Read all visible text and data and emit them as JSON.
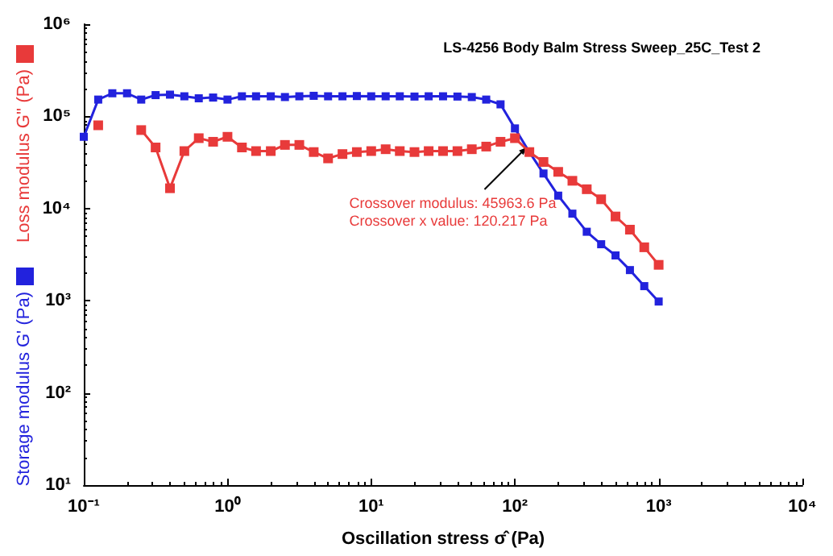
{
  "chart_data": {
    "type": "line",
    "title": "LS-4256 Body Balm Stress Sweep_25C_Test 2",
    "xlabel": "Oscillation stress σ̂ (Pa)",
    "log": "xy",
    "legend": "left",
    "grid": false,
    "xlim": [
      0.1,
      10000
    ],
    "xticks": [
      {
        "value": 0.1,
        "label": "10⁻¹"
      },
      {
        "value": 1,
        "label": "10⁰"
      },
      {
        "value": 10,
        "label": "10¹"
      },
      {
        "value": 100,
        "label": "10²"
      },
      {
        "value": 1000,
        "label": "10³"
      },
      {
        "value": 10000,
        "label": "10⁴"
      }
    ],
    "ylim": [
      10,
      1000000
    ],
    "yticks": [
      {
        "value": 10,
        "label": "10¹"
      },
      {
        "value": 100,
        "label": "10²"
      },
      {
        "value": 1000,
        "label": "10³"
      },
      {
        "value": 10000,
        "label": "10⁴"
      },
      {
        "value": 100000,
        "label": "10⁵"
      },
      {
        "value": 1000000,
        "label": "10⁶"
      }
    ],
    "annotations": [
      {
        "text": "Crossover modulus: 45963.6 Pa\nCrossover x value: 120.217 Pa",
        "x": 120.217,
        "y": 45963.6
      }
    ],
    "series": [
      {
        "name": "Loss modulus G'' (Pa)",
        "color": "#e83a3a",
        "marker": "square",
        "x": [
          0.126,
          0.2,
          0.251,
          0.316,
          0.398,
          0.501,
          0.631,
          0.794,
          1,
          1.26,
          1.58,
          2,
          2.51,
          3.16,
          3.98,
          5.01,
          6.31,
          7.94,
          10,
          12.6,
          15.8,
          20,
          25.1,
          31.6,
          39.8,
          50.1,
          63.1,
          79.4,
          100,
          126,
          158,
          200,
          251,
          316,
          398,
          501,
          631,
          794,
          1000
        ],
        "values": [
          80000,
          null,
          71000,
          46000,
          16600,
          42000,
          58000,
          53000,
          60000,
          46000,
          42000,
          42000,
          49000,
          49000,
          41000,
          35000,
          39000,
          41000,
          42000,
          44000,
          42000,
          41000,
          42000,
          42000,
          42000,
          44000,
          47000,
          53000,
          58000,
          41000,
          32000,
          25000,
          20000,
          16200,
          12600,
          8200,
          5900,
          3800,
          2450
        ]
      },
      {
        "name": "Storage modulus G' (Pa)",
        "color": "#2222dd",
        "marker": "square",
        "x": [
          0.1,
          0.126,
          0.158,
          0.2,
          0.251,
          0.316,
          0.398,
          0.501,
          0.631,
          0.794,
          1,
          1.26,
          1.58,
          2,
          2.51,
          3.16,
          3.98,
          5.01,
          6.31,
          7.94,
          10,
          12.6,
          15.8,
          20,
          25.1,
          31.6,
          39.8,
          50.1,
          63.1,
          79.4,
          100,
          126,
          158,
          200,
          251,
          316,
          398,
          501,
          631,
          794,
          1000
        ],
        "values": [
          60000,
          152000,
          178000,
          178000,
          152000,
          170000,
          172000,
          165000,
          157000,
          160000,
          152000,
          165000,
          165000,
          165000,
          162000,
          165000,
          167000,
          165000,
          165000,
          166000,
          165000,
          165000,
          165000,
          164000,
          165000,
          165000,
          164000,
          162000,
          152000,
          135000,
          74000,
          41000,
          24000,
          13800,
          8800,
          5600,
          4100,
          3100,
          2150,
          1440,
          980
        ]
      }
    ]
  }
}
